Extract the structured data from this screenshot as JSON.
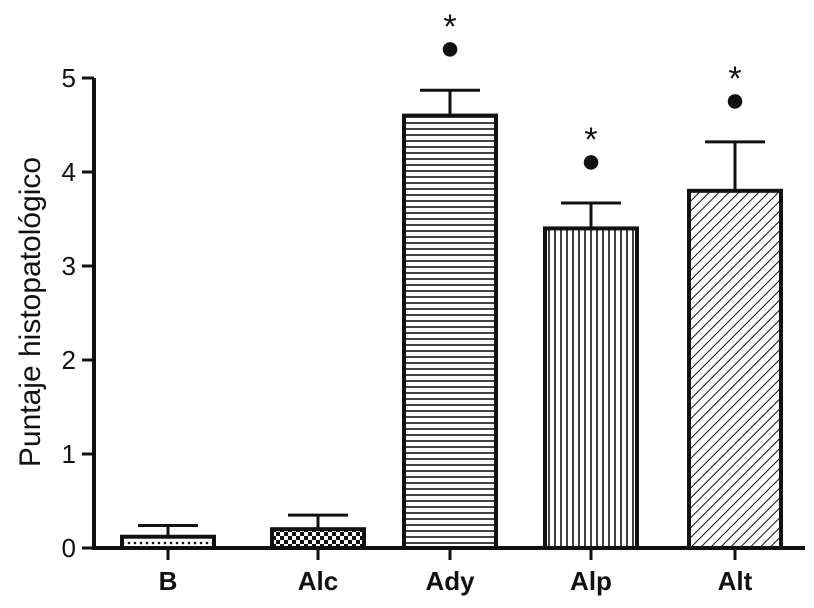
{
  "chart_data": {
    "type": "bar",
    "title": "",
    "xlabel": "",
    "ylabel": "Puntaje histopatológico",
    "ylim": [
      0,
      5
    ],
    "yticks": [
      "0",
      "1",
      "2",
      "3",
      "4",
      "5"
    ],
    "categories": [
      "B",
      "Alc",
      "Ady",
      "Alp",
      "Alt"
    ],
    "values": [
      0.12,
      0.2,
      4.6,
      3.4,
      3.8
    ],
    "error": [
      0.12,
      0.15,
      0.27,
      0.27,
      0.52
    ],
    "patterns": [
      "dots",
      "checker",
      "horizontal",
      "vertical",
      "diagonal"
    ],
    "significance": [
      {
        "star": "",
        "dot": ""
      },
      {
        "star": "",
        "dot": ""
      },
      {
        "star": "*",
        "dot": "●"
      },
      {
        "star": "*",
        "dot": "●"
      },
      {
        "star": "*",
        "dot": "●"
      }
    ],
    "grid": false,
    "colors": {
      "line": "#111111",
      "fill": "#ffffff"
    }
  }
}
